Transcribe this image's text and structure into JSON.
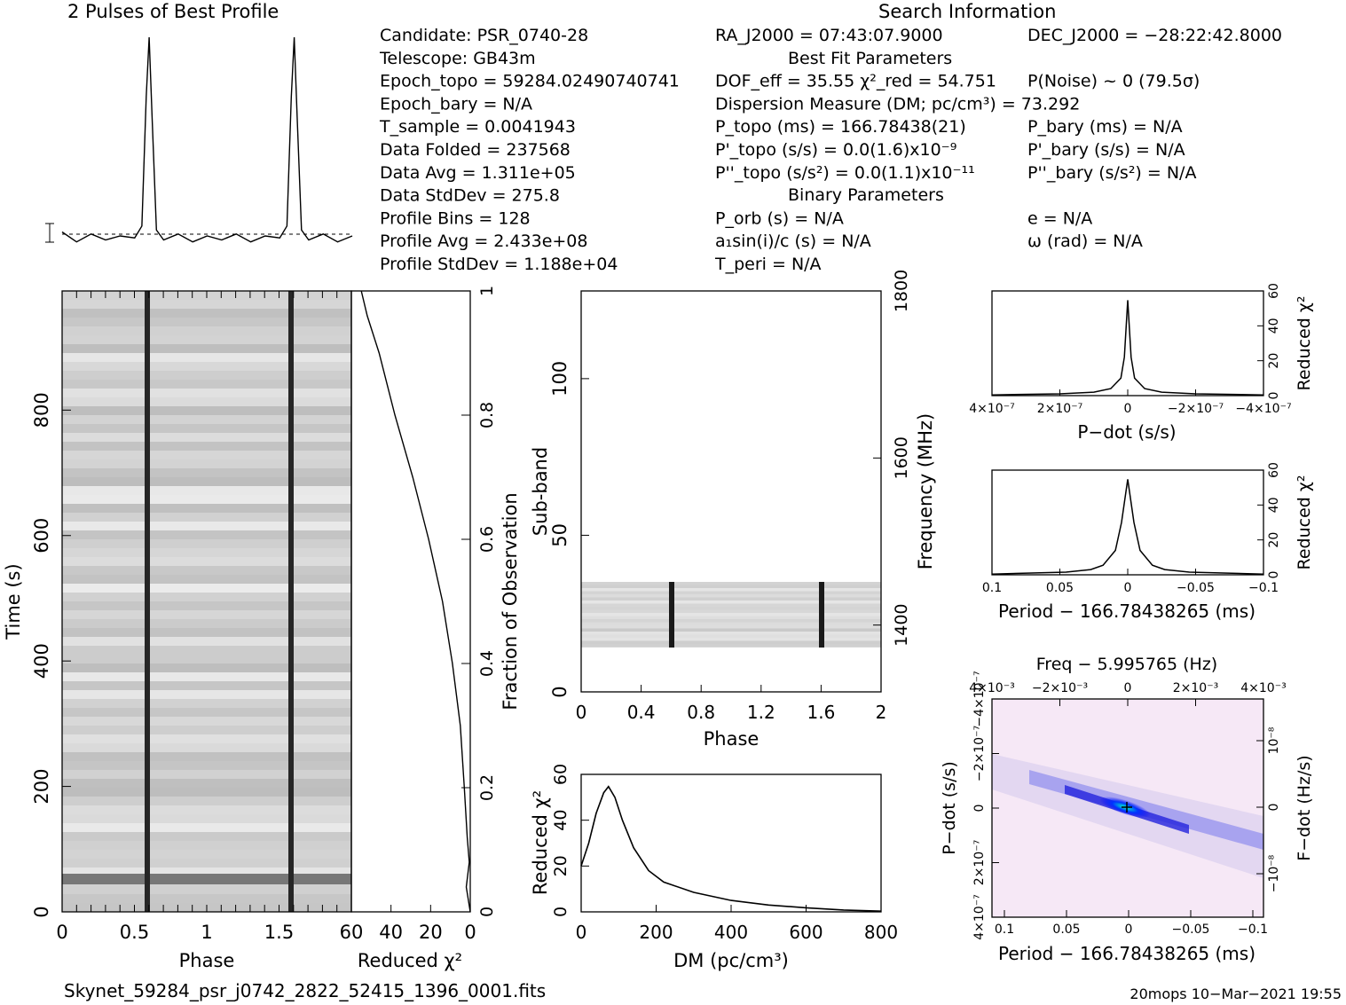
{
  "header": {
    "profile_title": "2 Pulses of Best Profile",
    "search_title": "Search Information",
    "best_fit_title": "Best Fit Parameters",
    "binary_title": "Binary Parameters"
  },
  "info_left": [
    "Candidate:  PSR_0740-28",
    "Telescope:  GB43m",
    "Epoch_topo = 59284.02490740741",
    "Epoch_bary = N/A",
    "T_sample       =  0.0041943",
    "Data Folded    =  237568",
    "Data Avg       =  1.311e+05",
    "Data StdDev    =  275.8",
    "Profile Bins   =  128",
    "Profile Avg    =  2.433e+08",
    "Profile StdDev =  1.188e+04"
  ],
  "info_mid": [
    "RA_J2000 = 07:43:07.9000",
    "",
    "DOF_eff = 35.55  χ²_red = 54.751",
    "Dispersion Measure (DM; pc/cm³) = 73.292",
    "P_topo (ms) =  166.78438(21)",
    "P'_topo (s/s) = 0.0(1.6)x10⁻⁹",
    "P''_topo (s/s²) = 0.0(1.1)x10⁻¹¹",
    "",
    "P_orb (s) = N/A",
    "a₁sin(i)/c (s) = N/A",
    "T_peri = N/A"
  ],
  "info_right": [
    "DEC_J2000 = −28:22:42.8000",
    "",
    "P(Noise) ~ 0   (79.5σ)",
    "",
    "P_bary (ms) = N/A",
    "P'_bary (s/s) = N/A",
    "P''_bary (s/s²) = N/A",
    "",
    "e = N/A",
    "ω (rad) = N/A",
    ""
  ],
  "footer": {
    "filename": "Skynet_59284_psr_j0742_2822_52415_1396_0001.fits",
    "stamp": "20mops 10−Mar−2021 19:55"
  },
  "chart_data": [
    {
      "id": "profile",
      "type": "line",
      "title": "2 Pulses of Best Profile",
      "x": [
        0,
        0.1,
        0.2,
        0.3,
        0.4,
        0.5,
        0.55,
        0.58,
        0.6,
        0.62,
        0.65,
        0.7,
        0.8,
        0.9,
        1.0,
        1.1,
        1.2,
        1.3,
        1.4,
        1.5,
        1.55,
        1.58,
        1.6,
        1.62,
        1.65,
        1.7,
        1.8,
        1.9,
        2.0
      ],
      "y": [
        0.02,
        -0.03,
        0.01,
        -0.02,
        0.0,
        -0.01,
        0.05,
        0.7,
        1.0,
        0.6,
        0.03,
        -0.02,
        0.01,
        -0.03,
        0.0,
        -0.02,
        0.01,
        -0.03,
        0.0,
        -0.01,
        0.05,
        0.7,
        1.0,
        0.6,
        0.03,
        -0.02,
        0.01,
        -0.03,
        0.0
      ]
    },
    {
      "id": "time_phase",
      "type": "heatmap",
      "xlabel": "Phase",
      "ylabel": "Time (s)",
      "xlim": [
        0,
        2
      ],
      "ylim": [
        0,
        990
      ],
      "xticks": [
        "0",
        "0.5",
        "1",
        "1.5"
      ],
      "yticks": [
        "0",
        "200",
        "400",
        "600",
        "800"
      ],
      "pulse_phase": [
        0.6,
        1.6
      ]
    },
    {
      "id": "chi2_time",
      "type": "line",
      "xlabel": "Reduced χ²",
      "ylabel": "Fraction of Observation",
      "xlim": [
        60,
        0
      ],
      "ylim": [
        0,
        1
      ],
      "xticks": [
        "60",
        "40",
        "20",
        "0"
      ],
      "yticks": [
        "0",
        "0.2",
        "0.4",
        "0.6",
        "0.8",
        "1"
      ],
      "x": [
        0,
        2,
        0.5,
        1.5,
        3,
        5,
        9,
        14,
        21,
        29,
        38,
        46,
        52,
        55
      ],
      "y": [
        0,
        0.04,
        0.08,
        0.12,
        0.2,
        0.3,
        0.4,
        0.5,
        0.6,
        0.7,
        0.8,
        0.9,
        0.96,
        1.0
      ]
    },
    {
      "id": "subband",
      "type": "heatmap",
      "xlabel": "Phase",
      "ylabel": "Sub-band",
      "y2label": "Frequency (MHz)",
      "xlim": [
        0,
        2
      ],
      "ylim": [
        0,
        128
      ],
      "xticks": [
        "0",
        "0.4",
        "0.8",
        "1.2",
        "1.6",
        "2"
      ],
      "yticks": [
        "0",
        "50",
        "100"
      ],
      "y2ticks": [
        "1400",
        "1600",
        "1800"
      ],
      "band_rows": [
        14,
        35
      ],
      "pulse_phase": [
        0.6,
        1.6
      ]
    },
    {
      "id": "dm_curve",
      "type": "line",
      "xlabel": "DM (pc/cm³)",
      "ylabel": "Reduced χ²",
      "xlim": [
        0,
        800
      ],
      "ylim": [
        0,
        60
      ],
      "xticks": [
        "0",
        "200",
        "400",
        "600",
        "800"
      ],
      "yticks": [
        "0",
        "20",
        "40",
        "60"
      ],
      "x": [
        0,
        20,
        40,
        60,
        73,
        90,
        110,
        140,
        180,
        220,
        300,
        400,
        500,
        600,
        700,
        800
      ],
      "y": [
        20,
        30,
        43,
        52,
        54.7,
        50,
        40,
        28,
        18,
        13,
        8.5,
        5,
        3,
        1.8,
        0.8,
        0.3
      ]
    },
    {
      "id": "pdot_curve",
      "type": "line",
      "xlabel": "P−dot (s/s)",
      "ylabel": "Reduced χ²",
      "xlim": [
        4e-07,
        -4e-07
      ],
      "ylim": [
        0,
        60
      ],
      "xticks": [
        "4×10⁻⁷",
        "2×10⁻⁷",
        "0",
        "−2×10⁻⁷",
        "−4×10⁻⁷"
      ],
      "yticks": [
        "0",
        "20",
        "40",
        "60"
      ],
      "x": [
        4e-07,
        2e-07,
        1e-07,
        5e-08,
        2e-08,
        1e-08,
        0,
        -1e-08,
        -2e-08,
        -5e-08,
        -1e-07,
        -2e-07,
        -4e-07
      ],
      "y": [
        0.4,
        1.0,
        2.0,
        4.0,
        10,
        22,
        54.7,
        22,
        10,
        4.0,
        2.0,
        1.0,
        0.4
      ]
    },
    {
      "id": "period_curve",
      "type": "line",
      "xlabel": "Period − 166.78438265 (ms)",
      "ylabel": "Reduced χ²",
      "xlim": [
        0.11,
        -0.11
      ],
      "ylim": [
        0,
        60
      ],
      "xticks": [
        "0.1",
        "0.05",
        "0",
        "−0.05",
        "−0.1"
      ],
      "yticks": [
        "0",
        "20",
        "40",
        "60"
      ],
      "x": [
        0.11,
        0.05,
        0.03,
        0.02,
        0.01,
        0.005,
        0,
        -0.005,
        -0.01,
        -0.02,
        -0.03,
        -0.05,
        -0.11
      ],
      "y": [
        0.4,
        1.5,
        3.0,
        5.5,
        14,
        30,
        54.7,
        30,
        14,
        5.5,
        3.0,
        1.5,
        0.4
      ]
    },
    {
      "id": "p_pdot",
      "type": "heatmap",
      "title": "Freq − 5.995765 (Hz)",
      "xlabel": "Period − 166.78438265 (ms)",
      "ylabel": "P−dot (s/s)",
      "y2label": "F−dot (Hz/s)",
      "xticks": [
        "0.1",
        "0.05",
        "0",
        "−0.05",
        "−0.1"
      ],
      "x2ticks": [
        "4×10⁻³",
        "−2×10⁻³",
        "0",
        "2×10⁻³",
        "4×10⁻³"
      ],
      "yticks": [
        "4×10⁻⁷",
        "2×10⁻⁷",
        "0",
        "−2×10⁻⁷",
        "−4×10⁻⁷"
      ],
      "y2ticks": [
        "10⁻⁸",
        "0",
        "−10⁻⁸"
      ]
    }
  ]
}
